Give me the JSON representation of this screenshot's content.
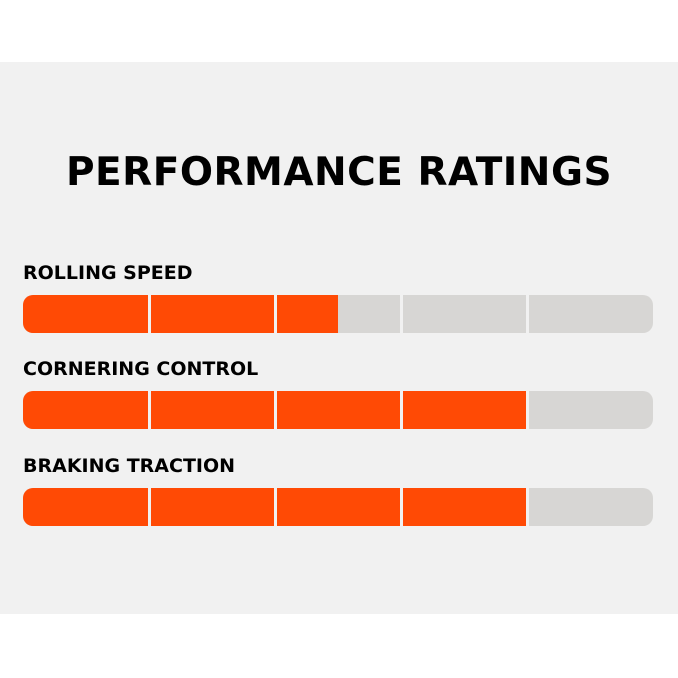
{
  "title": "PERFORMANCE RATINGS",
  "segments_per_bar": 5,
  "colors": {
    "accent": "#ff4a05",
    "track": "#d7d6d4",
    "panel": "#f1f1f1",
    "text": "#000000"
  },
  "ratings": [
    {
      "label": "ROLLING SPEED",
      "value": 2.5,
      "max": 5
    },
    {
      "label": "CORNERING CONTROL",
      "value": 4,
      "max": 5
    },
    {
      "label": "BRAKING TRACTION",
      "value": 4,
      "max": 5
    }
  ]
}
